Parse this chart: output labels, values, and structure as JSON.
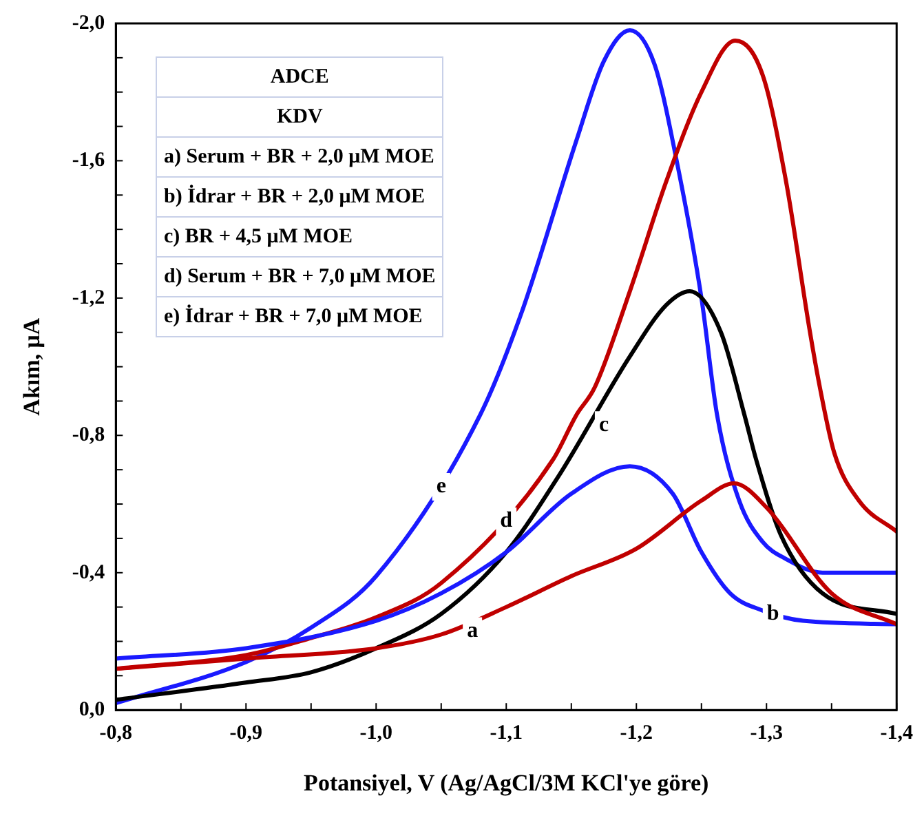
{
  "chart_data": {
    "type": "line",
    "xlabel": "Potansiyel, V (Ag/AgCl/3M KCl'ye göre)",
    "ylabel": "Akım, μA",
    "xlim": [
      -0.8,
      -1.4
    ],
    "ylim": [
      0,
      -2.0
    ],
    "xticks": [
      {
        "value": -0.8,
        "label": "-0,8"
      },
      {
        "value": -0.85,
        "label": null
      },
      {
        "value": -0.9,
        "label": "-0,9"
      },
      {
        "value": -0.95,
        "label": null
      },
      {
        "value": -1.0,
        "label": "-1,0"
      },
      {
        "value": -1.05,
        "label": null
      },
      {
        "value": -1.1,
        "label": "-1,1"
      },
      {
        "value": -1.15,
        "label": null
      },
      {
        "value": -1.2,
        "label": "-1,2"
      },
      {
        "value": -1.25,
        "label": null
      },
      {
        "value": -1.3,
        "label": "-1,3"
      },
      {
        "value": -1.35,
        "label": null
      },
      {
        "value": -1.4,
        "label": "-1,4"
      }
    ],
    "yticks": [
      {
        "value": 0,
        "label": "0,0"
      },
      {
        "value": -0.1,
        "label": null
      },
      {
        "value": -0.2,
        "label": null
      },
      {
        "value": -0.3,
        "label": null
      },
      {
        "value": -0.4,
        "label": "-0,4"
      },
      {
        "value": -0.5,
        "label": null
      },
      {
        "value": -0.6,
        "label": null
      },
      {
        "value": -0.7,
        "label": null
      },
      {
        "value": -0.8,
        "label": "-0,8"
      },
      {
        "value": -0.9,
        "label": null
      },
      {
        "value": -1.0,
        "label": null
      },
      {
        "value": -1.1,
        "label": null
      },
      {
        "value": -1.2,
        "label": "-1,2"
      },
      {
        "value": -1.3,
        "label": null
      },
      {
        "value": -1.4,
        "label": null
      },
      {
        "value": -1.5,
        "label": null
      },
      {
        "value": -1.6,
        "label": "-1,6"
      },
      {
        "value": -1.7,
        "label": null
      },
      {
        "value": -1.8,
        "label": null
      },
      {
        "value": -1.9,
        "label": null
      },
      {
        "value": -2.0,
        "label": "-2,0"
      }
    ],
    "grid": false,
    "legend": false,
    "series": [
      {
        "color": "#c00000",
        "x": [
          -0.8,
          -0.9,
          -1.0,
          -1.05,
          -1.1,
          -1.15,
          -1.2,
          -1.25,
          -1.275,
          -1.3,
          -1.35,
          -1.4
        ],
        "values": [
          -0.12,
          -0.15,
          -0.18,
          -0.22,
          -0.3,
          -0.39,
          -0.47,
          -0.61,
          -0.66,
          -0.59,
          -0.34,
          -0.25
        ]
      },
      {
        "color": "#1a1aff",
        "x": [
          -0.8,
          -0.9,
          -1.0,
          -1.05,
          -1.1,
          -1.15,
          -1.195,
          -1.228,
          -1.25,
          -1.272,
          -1.297,
          -1.328,
          -1.4
        ],
        "values": [
          -0.15,
          -0.18,
          -0.26,
          -0.34,
          -0.46,
          -0.63,
          -0.71,
          -0.63,
          -0.46,
          -0.34,
          -0.29,
          -0.26,
          -0.25
        ]
      },
      {
        "color": "#000000",
        "x": [
          -0.8,
          -0.9,
          -0.95,
          -1.0,
          -1.05,
          -1.1,
          -1.14,
          -1.195,
          -1.223,
          -1.241,
          -1.265,
          -1.283,
          -1.292,
          -1.311,
          -1.343,
          -1.4
        ],
        "values": [
          -0.03,
          -0.08,
          -0.11,
          -0.18,
          -0.28,
          -0.46,
          -0.68,
          -1.03,
          -1.18,
          -1.22,
          -1.1,
          -0.86,
          -0.73,
          -0.51,
          -0.34,
          -0.28
        ]
      },
      {
        "color": "#c00000",
        "x": [
          -0.8,
          -0.9,
          -0.95,
          -1.0,
          -1.05,
          -1.136,
          -1.154,
          -1.168,
          -1.195,
          -1.223,
          -1.25,
          -1.276,
          -1.297,
          -1.315,
          -1.333,
          -1.341,
          -1.352,
          -1.371,
          -1.4
        ],
        "values": [
          -0.12,
          -0.16,
          -0.21,
          -0.27,
          -0.37,
          -0.73,
          -0.86,
          -0.94,
          -1.22,
          -1.54,
          -1.8,
          -1.95,
          -1.85,
          -1.54,
          -1.11,
          -0.94,
          -0.75,
          -0.61,
          -0.52
        ]
      },
      {
        "color": "#1a1aff",
        "x": [
          -0.8,
          -0.9,
          -0.95,
          -1.0,
          -1.08,
          -1.112,
          -1.154,
          -1.175,
          -1.195,
          -1.214,
          -1.232,
          -1.25,
          -1.262,
          -1.279,
          -1.297,
          -1.315,
          -1.343,
          -1.4
        ],
        "values": [
          -0.02,
          -0.14,
          -0.24,
          -0.39,
          -0.86,
          -1.16,
          -1.66,
          -1.89,
          -1.98,
          -1.88,
          -1.58,
          -1.2,
          -0.86,
          -0.61,
          -0.49,
          -0.44,
          -0.4,
          -0.4
        ]
      }
    ],
    "annotations": [
      "ADCE",
      "KDV",
      "a) Serum + BR + 2,0 μM MOE",
      "b) İdrar + BR + 2,0 μM MOE",
      "c) BR + 4,5 μM MOE",
      "d) Serum + BR + 7,0 μM MOE",
      "e) İdrar + BR + 7,0 μM MOE",
      {
        "text": "a",
        "x": -1.074,
        "y": -0.23
      },
      {
        "text": "b",
        "x": -1.305,
        "y": -0.28
      },
      {
        "text": "c",
        "x": -1.175,
        "y": -0.83
      },
      {
        "text": "d",
        "x": -1.1,
        "y": -0.55
      },
      {
        "text": "e",
        "x": -1.05,
        "y": -0.65
      }
    ]
  }
}
